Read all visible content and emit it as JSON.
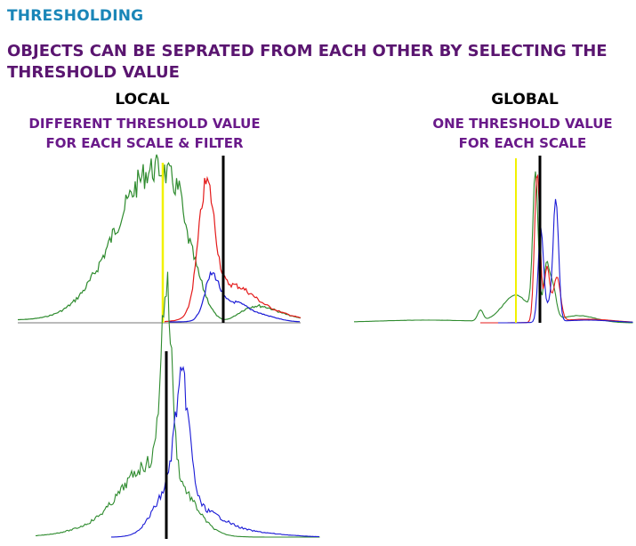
{
  "heading": "THRESHOLDING",
  "subtitle": {
    "line1": "OBJECTS CAN BE SEPRATED FROM EACH OTHER BY SELECTING THE",
    "line2": "THRESHOLD VALUE"
  },
  "local": {
    "title": "LOCAL",
    "desc_line1": "DIFFERENT THRESHOLD VALUE",
    "desc_line2": "FOR EACH SCALE & FILTER"
  },
  "global": {
    "title": "GLOBAL",
    "desc_line1": "ONE THRESHOLD VALUE",
    "desc_line2": "FOR EACH SCALE"
  },
  "colors": {
    "heading": "#1a86b8",
    "subtitle": "#5a1570",
    "description": "#6a1a8a",
    "green": "#2e8b2e",
    "red": "#e41a1a",
    "blue": "#1a1ad6",
    "yellow": "#f2f200",
    "threshold": "#000000"
  }
}
